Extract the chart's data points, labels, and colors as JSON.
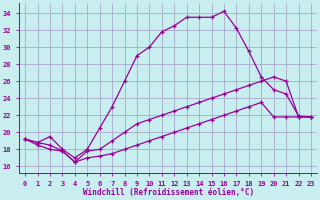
{
  "background_color": "#c8eef0",
  "grid_color": "#aaaacc",
  "line_color": "#990099",
  "xlabel": "Windchill (Refroidissement éolien,°C)",
  "x_ticks": [
    0,
    1,
    2,
    3,
    4,
    5,
    6,
    7,
    8,
    9,
    10,
    11,
    12,
    13,
    14,
    15,
    16,
    17,
    18,
    19,
    20,
    21,
    22,
    23
  ],
  "y_ticks": [
    16,
    18,
    20,
    22,
    24,
    26,
    28,
    30,
    32,
    34
  ],
  "xlim": [
    -0.5,
    23.5
  ],
  "ylim": [
    15.2,
    35.2
  ],
  "curve1_x": [
    0,
    1,
    2,
    3,
    4,
    5,
    6,
    7,
    8,
    9,
    10,
    11,
    12,
    13,
    14,
    15,
    16,
    17,
    18,
    19,
    20,
    21,
    22,
    23
  ],
  "curve1_y": [
    19.2,
    18.8,
    19.5,
    18.0,
    17.0,
    18.0,
    20.5,
    23.0,
    26.0,
    29.0,
    30.0,
    31.8,
    32.5,
    33.5,
    33.5,
    33.5,
    34.2,
    32.2,
    29.5,
    26.5,
    25.0,
    24.5,
    21.9,
    21.8
  ],
  "curve2_x": [
    0,
    1,
    2,
    3,
    4,
    5,
    6,
    7,
    8,
    9,
    10,
    11,
    12,
    13,
    14,
    15,
    16,
    17,
    18,
    19,
    20,
    21,
    22,
    23
  ],
  "curve2_y": [
    19.2,
    18.8,
    18.5,
    17.8,
    16.5,
    17.8,
    18.0,
    19.0,
    20.0,
    21.0,
    21.5,
    22.0,
    22.5,
    23.0,
    23.5,
    24.0,
    24.5,
    25.0,
    25.5,
    26.0,
    26.5,
    26.0,
    21.8,
    21.8
  ],
  "curve3_x": [
    0,
    1,
    2,
    3,
    4,
    5,
    6,
    7,
    8,
    9,
    10,
    11,
    12,
    13,
    14,
    15,
    16,
    17,
    18,
    19,
    20,
    21,
    22,
    23
  ],
  "curve3_y": [
    19.2,
    18.5,
    18.0,
    17.8,
    16.5,
    17.0,
    17.2,
    17.5,
    18.0,
    18.5,
    19.0,
    19.5,
    20.0,
    20.5,
    21.0,
    21.5,
    22.0,
    22.5,
    23.0,
    23.5,
    21.8,
    21.8,
    21.8,
    21.8
  ]
}
